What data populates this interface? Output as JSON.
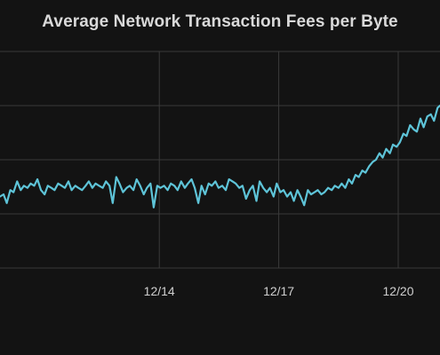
{
  "chart_data": {
    "type": "line",
    "title": "Average Network Transaction Fees per Byte",
    "xlabel": "",
    "ylabel": "",
    "x_tick_labels": [
      "12/14",
      "12/17",
      "12/20"
    ],
    "x_tick_values": [
      4,
      7,
      10
    ],
    "xlim": [
      0,
      11.05
    ],
    "ylim": [
      0,
      100
    ],
    "grid": true,
    "legend": "none",
    "series": [
      {
        "color": "#5ec4d8",
        "x": [
          0.0,
          0.09,
          0.17,
          0.26,
          0.34,
          0.43,
          0.52,
          0.6,
          0.69,
          0.77,
          0.86,
          0.94,
          1.03,
          1.12,
          1.2,
          1.29,
          1.37,
          1.46,
          1.55,
          1.63,
          1.72,
          1.8,
          1.89,
          1.97,
          2.06,
          2.15,
          2.23,
          2.32,
          2.4,
          2.49,
          2.58,
          2.66,
          2.75,
          2.83,
          2.92,
          3.0,
          3.09,
          3.18,
          3.26,
          3.35,
          3.43,
          3.52,
          3.61,
          3.69,
          3.78,
          3.86,
          3.95,
          4.03,
          4.12,
          4.21,
          4.29,
          4.38,
          4.46,
          4.55,
          4.64,
          4.72,
          4.81,
          4.89,
          4.98,
          5.06,
          5.15,
          5.24,
          5.32,
          5.41,
          5.49,
          5.58,
          5.67,
          5.75,
          5.84,
          5.92,
          6.01,
          6.09,
          6.18,
          6.27,
          6.35,
          6.44,
          6.52,
          6.61,
          6.7,
          6.78,
          6.87,
          6.95,
          7.04,
          7.12,
          7.21,
          7.3,
          7.38,
          7.47,
          7.55,
          7.64,
          7.73,
          7.81,
          7.9,
          7.98,
          8.07,
          8.15,
          8.24,
          8.33,
          8.41,
          8.5,
          8.58,
          8.67,
          8.76,
          8.84,
          8.93,
          9.01,
          9.1,
          9.18,
          9.27,
          9.36,
          9.44,
          9.53,
          9.61,
          9.7,
          9.79,
          9.87,
          9.96,
          10.04,
          10.13,
          10.21,
          10.3,
          10.39,
          10.47,
          10.56,
          10.64,
          10.73,
          10.82,
          10.9,
          10.99,
          11.05
        ],
        "y": [
          33,
          34,
          30,
          36,
          35,
          40,
          36,
          38,
          37,
          39,
          38,
          41,
          36,
          34,
          38,
          37,
          36,
          39,
          38,
          37,
          40,
          36,
          38,
          37,
          36,
          38,
          40,
          37,
          39,
          38,
          37,
          40,
          38,
          30,
          42,
          39,
          35,
          37,
          38,
          36,
          41,
          38,
          34,
          37,
          39,
          28,
          38,
          37,
          38,
          36,
          39,
          38,
          36,
          40,
          37,
          39,
          41,
          37,
          30,
          38,
          34,
          39,
          38,
          40,
          37,
          38,
          36,
          41,
          40,
          39,
          37,
          38,
          32,
          36,
          38,
          31,
          40,
          37,
          35,
          37,
          33,
          39,
          35,
          36,
          33,
          35,
          31,
          36,
          33,
          29,
          36,
          34,
          35,
          36,
          34,
          35,
          37,
          36,
          38,
          37,
          39,
          37,
          41,
          39,
          43,
          42,
          45,
          44,
          47,
          49,
          50,
          53,
          51,
          55,
          53,
          57,
          56,
          58,
          62,
          61,
          66,
          64,
          63,
          69,
          65,
          70,
          71,
          68,
          74,
          75
        ]
      }
    ]
  }
}
